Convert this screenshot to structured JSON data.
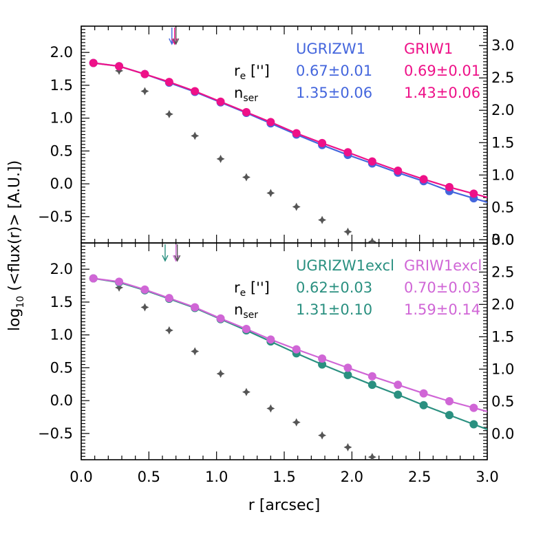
{
  "chart_data": [
    {
      "type": "scatter",
      "panel": "top",
      "xlim": [
        0.0,
        3.0
      ],
      "ylim": [
        -0.9,
        2.4
      ],
      "y2lim": [
        -0.05,
        3.3
      ],
      "xlabel": "r [arcsec]",
      "xticks": [
        "0.0",
        "0.5",
        "1.0",
        "1.5",
        "2.0",
        "2.5",
        "3.0"
      ],
      "yticks": [
        "2.0",
        "1.5",
        "1.0",
        "0.5",
        "0.0",
        "−0.5"
      ],
      "y2ticks": [
        "3.0",
        "2.5",
        "2.0",
        "1.5",
        "1.0",
        "0.5",
        "0.0"
      ],
      "legend_labels": {
        "col1": "UGRIZW1",
        "col2": "GRIW1"
      },
      "params": {
        "re_label": "re ['']",
        "nser_label": "nser",
        "col1_re": "0.67±0.01",
        "col2_re": "0.69±0.01",
        "col1_n": "1.35±0.06",
        "col2_n": "1.43±0.06"
      },
      "colors": {
        "col1": "#4466dd",
        "col2": "#ee1188",
        "psf": "#555555"
      },
      "arrows": [
        {
          "x": 0.67,
          "color": "#4466dd"
        },
        {
          "x": 0.69,
          "color": "#ee1188"
        },
        {
          "x": 0.7,
          "color": "#555555"
        }
      ],
      "series": [
        {
          "name": "UGRIZW1",
          "x": [
            0.09,
            0.28,
            0.47,
            0.65,
            0.84,
            1.03,
            1.22,
            1.4,
            1.59,
            1.78,
            1.97,
            2.15,
            2.34,
            2.53,
            2.72,
            2.9
          ],
          "y": [
            1.84,
            1.79,
            1.67,
            1.54,
            1.4,
            1.24,
            1.08,
            0.92,
            0.75,
            0.59,
            0.44,
            0.31,
            0.17,
            0.04,
            -0.11,
            -0.22
          ]
        },
        {
          "name": "GRIW1",
          "x": [
            0.09,
            0.28,
            0.47,
            0.65,
            0.84,
            1.03,
            1.22,
            1.4,
            1.59,
            1.78,
            1.97,
            2.15,
            2.34,
            2.53,
            2.72,
            2.9
          ],
          "y": [
            1.84,
            1.79,
            1.67,
            1.55,
            1.41,
            1.25,
            1.09,
            0.94,
            0.77,
            0.62,
            0.48,
            0.34,
            0.2,
            0.07,
            -0.05,
            -0.15
          ]
        },
        {
          "name": "psf",
          "x": [
            0.09,
            0.28,
            0.47,
            0.65,
            0.84,
            1.03,
            1.22,
            1.4,
            1.59,
            1.78,
            1.97,
            2.15
          ],
          "y": [
            1.84,
            1.72,
            1.41,
            1.06,
            0.73,
            0.38,
            0.1,
            -0.14,
            -0.35,
            -0.55,
            -0.73,
            -0.88
          ]
        }
      ]
    },
    {
      "type": "scatter",
      "panel": "bottom",
      "xlim": [
        0.0,
        3.0
      ],
      "ylim": [
        -0.9,
        2.4
      ],
      "y2lim": [
        -0.4,
        2.95
      ],
      "xlabel": "r [arcsec]",
      "xticks": [
        "0.0",
        "0.5",
        "1.0",
        "1.5",
        "2.0",
        "2.5",
        "3.0"
      ],
      "yticks": [
        "2.0",
        "1.5",
        "1.0",
        "0.5",
        "0.0",
        "−0.5"
      ],
      "y2ticks": [
        "3.0",
        "2.5",
        "2.0",
        "1.5",
        "1.0",
        "0.5",
        "0.0"
      ],
      "legend_labels": {
        "col1": "UGRIZW1excl",
        "col2": "GRIW1excl"
      },
      "params": {
        "re_label": "re ['']",
        "nser_label": "nser",
        "col1_re": "0.62±0.03",
        "col2_re": "0.70±0.03",
        "col1_n": "1.31±0.10",
        "col2_n": "1.59±0.14"
      },
      "colors": {
        "col1": "#2a9080",
        "col2": "#d066d6",
        "psf": "#555555"
      },
      "arrows": [
        {
          "x": 0.62,
          "color": "#2a9080"
        },
        {
          "x": 0.7,
          "color": "#d066d6"
        },
        {
          "x": 0.71,
          "color": "#555555"
        }
      ],
      "series": [
        {
          "name": "UGRIZW1excl",
          "x": [
            0.09,
            0.28,
            0.47,
            0.65,
            0.84,
            1.03,
            1.22,
            1.4,
            1.59,
            1.78,
            1.97,
            2.15,
            2.34,
            2.53,
            2.72,
            2.9
          ],
          "y": [
            1.86,
            1.8,
            1.68,
            1.55,
            1.41,
            1.24,
            1.07,
            0.9,
            0.72,
            0.55,
            0.39,
            0.24,
            0.09,
            -0.07,
            -0.22,
            -0.36
          ]
        },
        {
          "name": "GRIW1excl",
          "x": [
            0.09,
            0.28,
            0.47,
            0.65,
            0.84,
            1.03,
            1.22,
            1.4,
            1.59,
            1.78,
            1.97,
            2.15,
            2.34,
            2.53,
            2.72,
            2.9
          ],
          "y": [
            1.86,
            1.81,
            1.69,
            1.56,
            1.42,
            1.25,
            1.09,
            0.93,
            0.78,
            0.64,
            0.5,
            0.37,
            0.24,
            0.11,
            -0.01,
            -0.11
          ]
        },
        {
          "name": "psf",
          "x": [
            0.09,
            0.28,
            0.47,
            0.65,
            0.84,
            1.03,
            1.22,
            1.4,
            1.59,
            1.78,
            1.97,
            2.15
          ],
          "y": [
            1.86,
            1.72,
            1.42,
            1.07,
            0.75,
            0.41,
            0.13,
            -0.12,
            -0.33,
            -0.53,
            -0.71,
            -0.86
          ]
        }
      ]
    }
  ],
  "shared": {
    "ylabel": "log10 (<flux(r)> [A.U.])",
    "ylabel_main": "log",
    "ylabel_sub": "10",
    "ylabel_rest": " (<flux(r)> [A.U.])"
  }
}
